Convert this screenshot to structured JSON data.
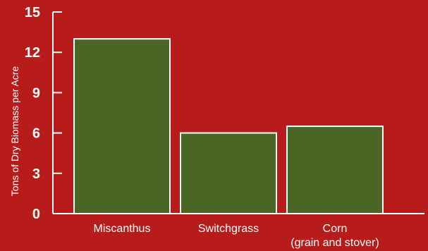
{
  "chart_data": {
    "type": "bar",
    "title": "",
    "xlabel": "",
    "ylabel": "Tons of Dry Biomass per Acre",
    "ylim": [
      0,
      15
    ],
    "yticks": [
      0,
      3,
      6,
      9,
      12,
      15
    ],
    "grid": false,
    "categories": [
      {
        "lines": [
          "Miscanthus"
        ]
      },
      {
        "lines": [
          "Switchgrass"
        ]
      },
      {
        "lines": [
          "Corn",
          "(grain and stover)"
        ]
      }
    ],
    "values": [
      13,
      6,
      6.5
    ],
    "colors": {
      "background": "#b71c1a",
      "bar_fill": "#4a6524",
      "bar_stroke": "#ffffff",
      "axis": "#ffffff",
      "text": "#ffffff"
    }
  }
}
